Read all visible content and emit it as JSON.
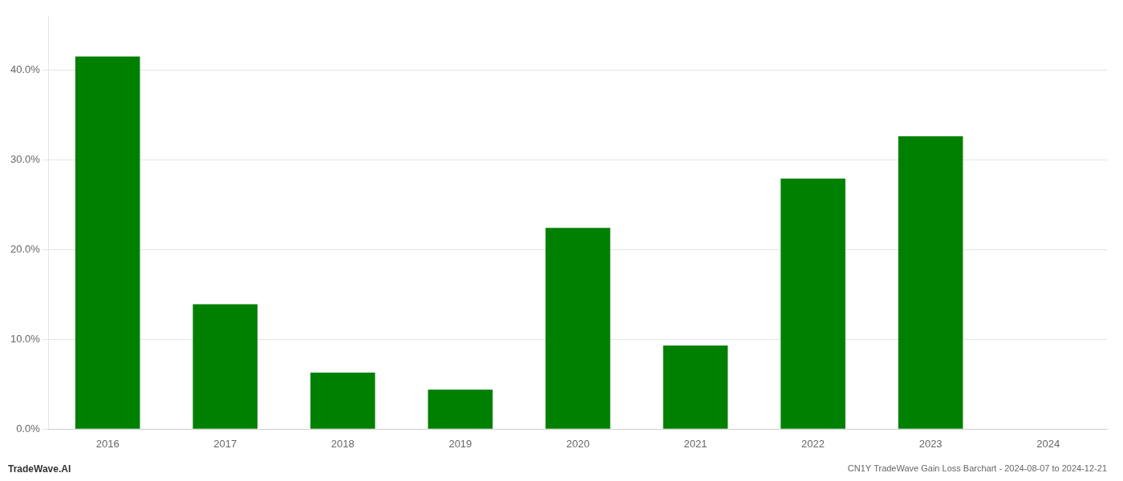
{
  "chart_data": {
    "type": "bar",
    "title": "CN1Y TradeWave Gain Loss Barchart - 2024-08-07 to 2024-12-21",
    "annotations": [
      "TradeWave.AI"
    ],
    "categories": [
      "2016",
      "2017",
      "2018",
      "2019",
      "2020",
      "2021",
      "2022",
      "2023",
      "2024"
    ],
    "values": [
      0.415,
      0.139,
      0.063,
      0.044,
      0.224,
      0.093,
      0.279,
      0.326,
      0.0
    ],
    "color": "#008000",
    "ylim": [
      0.0,
      0.46
    ],
    "yticks": [
      {
        "value": 0.0,
        "label": "0.0%"
      },
      {
        "value": 0.1,
        "label": "10.0%"
      },
      {
        "value": 0.2,
        "label": "20.0%"
      },
      {
        "value": 0.3,
        "label": "30.0%"
      },
      {
        "value": 0.4,
        "label": "40.0%"
      }
    ],
    "grid": true
  }
}
